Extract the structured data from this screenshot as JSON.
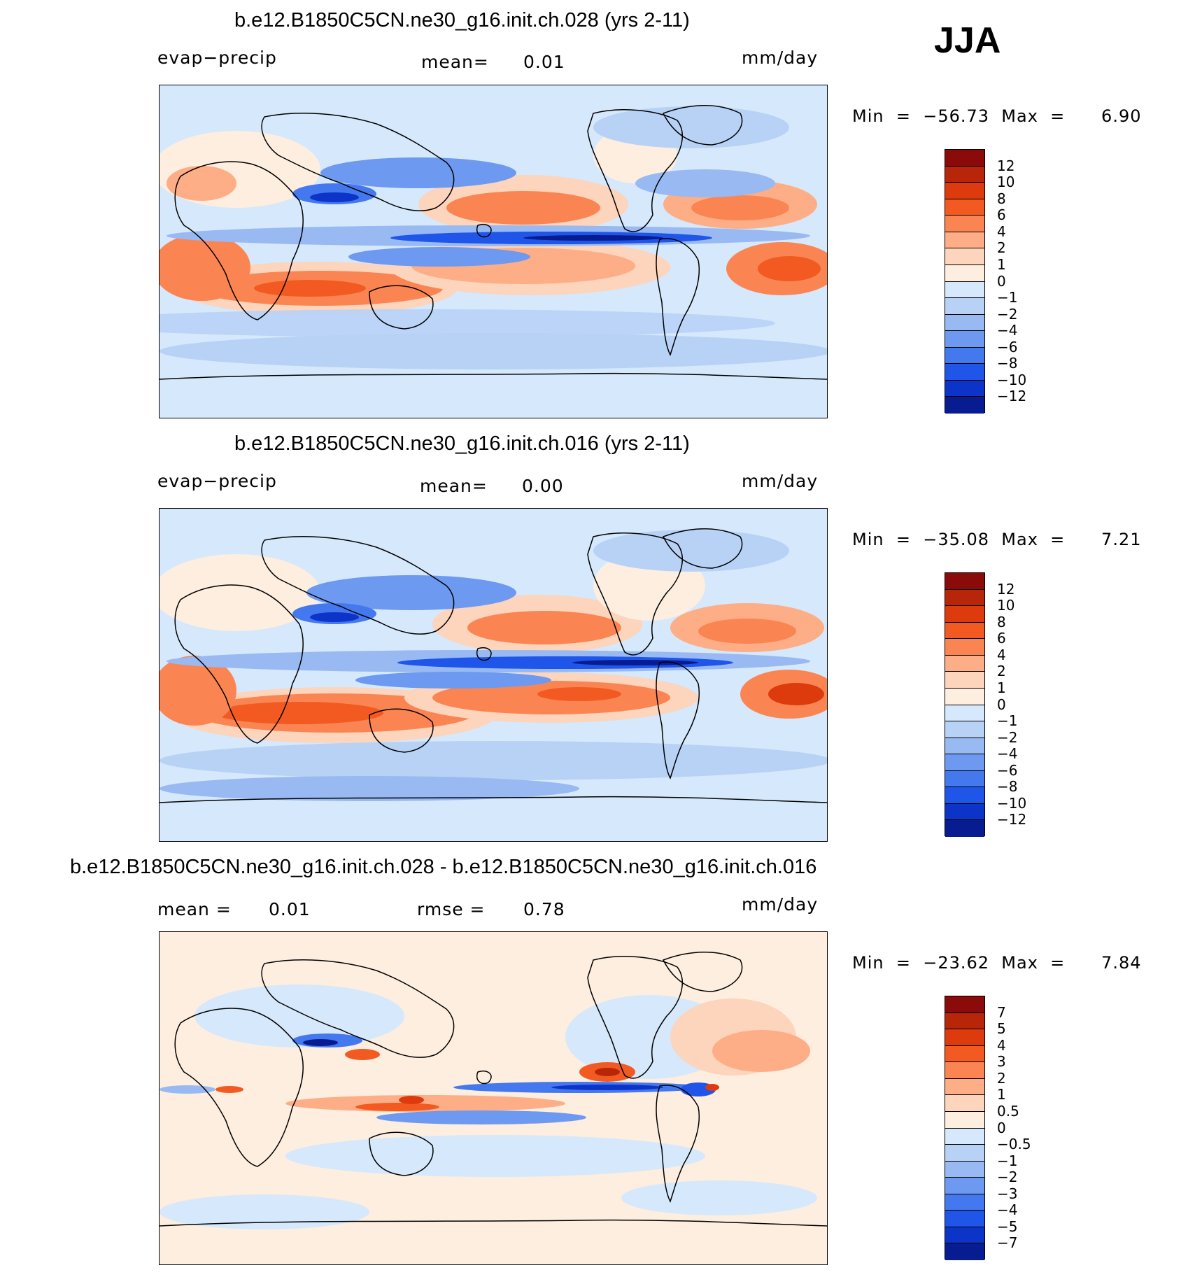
{
  "season": "JJA",
  "panels": [
    {
      "id": "panel1",
      "title": "b.e12.B1850C5CN.ne30_g16.init.ch.028 (yrs 2-11)",
      "variable": "evap−precip",
      "stat1_label": "mean=",
      "stat1_value": "0.01",
      "stat2_label": "",
      "stat2_value": "",
      "units": "mm/day",
      "min_max": "Min  =  −56.73  Max  =      6.90",
      "colorbar_labels": [
        "12",
        "10",
        "8",
        "6",
        "4",
        "2",
        "1",
        "0",
        "−1",
        "−2",
        "−4",
        "−6",
        "−8",
        "−10",
        "−12"
      ]
    },
    {
      "id": "panel2",
      "title": "b.e12.B1850C5CN.ne30_g16.init.ch.016 (yrs 2-11)",
      "variable": "evap−precip",
      "stat1_label": "mean=",
      "stat1_value": "0.00",
      "stat2_label": "",
      "stat2_value": "",
      "units": "mm/day",
      "min_max": "Min  =  −35.08  Max  =      7.21",
      "colorbar_labels": [
        "12",
        "10",
        "8",
        "6",
        "4",
        "2",
        "1",
        "0",
        "−1",
        "−2",
        "−4",
        "−6",
        "−8",
        "−10",
        "−12"
      ]
    },
    {
      "id": "panel3",
      "title": "b.e12.B1850C5CN.ne30_g16.init.ch.028 - b.e12.B1850C5CN.ne30_g16.init.ch.016",
      "variable": "",
      "stat1_label": "mean =",
      "stat1_value": "0.01",
      "stat2_label": "rmse =",
      "stat2_value": "0.78",
      "units": "mm/day",
      "min_max": "Min  =  −23.62  Max  =      7.84",
      "colorbar_labels": [
        "7",
        "5",
        "4",
        "3",
        "2",
        "1",
        "0.5",
        "0",
        "−0.5",
        "−1",
        "−2",
        "−3",
        "−4",
        "−5",
        "−7"
      ]
    }
  ],
  "colorbar_colors": [
    "#8b0a0a",
    "#b8260a",
    "#dd3a0e",
    "#f25a22",
    "#fb8552",
    "#fdae87",
    "#fdd4bc",
    "#fdeee0",
    "#d6e8fb",
    "#b8d2f6",
    "#98b9f2",
    "#6d99f0",
    "#4478ef",
    "#1f55e8",
    "#0d34c8",
    "#081c92"
  ],
  "colors": {
    "land_outline": "#000000",
    "ocean_neutral": "#d6e8fb"
  }
}
